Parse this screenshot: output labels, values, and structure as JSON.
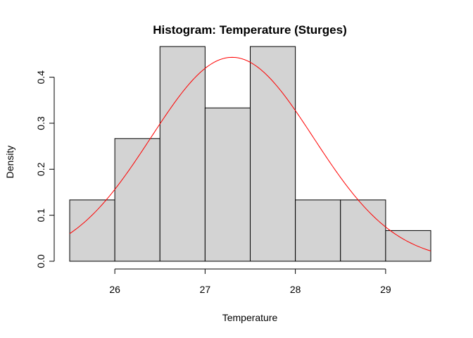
{
  "chart_data": {
    "type": "bar",
    "title": "Histogram: Temperature (Sturges)",
    "xlabel": "Temperature",
    "ylabel": "Density",
    "xlim": [
      25.5,
      29.5
    ],
    "ylim": [
      0,
      0.45
    ],
    "x_ticks": [
      26,
      27,
      28,
      29
    ],
    "y_ticks": [
      0.0,
      0.1,
      0.2,
      0.3,
      0.4
    ],
    "y_tick_labels": [
      "0.0",
      "0.1",
      "0.2",
      "0.3",
      "0.4"
    ],
    "bins": [
      {
        "start": 25.5,
        "end": 26.0,
        "density": 0.1333
      },
      {
        "start": 26.0,
        "end": 26.5,
        "density": 0.2667
      },
      {
        "start": 26.5,
        "end": 27.0,
        "density": 0.4667
      },
      {
        "start": 27.0,
        "end": 27.5,
        "density": 0.3333
      },
      {
        "start": 27.5,
        "end": 28.0,
        "density": 0.4667
      },
      {
        "start": 28.0,
        "end": 28.5,
        "density": 0.1333
      },
      {
        "start": 28.5,
        "end": 29.0,
        "density": 0.1333
      },
      {
        "start": 29.0,
        "end": 29.5,
        "density": 0.0667
      }
    ],
    "density_curve": {
      "type": "normal",
      "mean": 27.3,
      "sd": 0.9,
      "color": "#ff0000"
    },
    "bar_fill": "#d3d3d3",
    "bar_stroke": "#000000",
    "grid": false
  }
}
